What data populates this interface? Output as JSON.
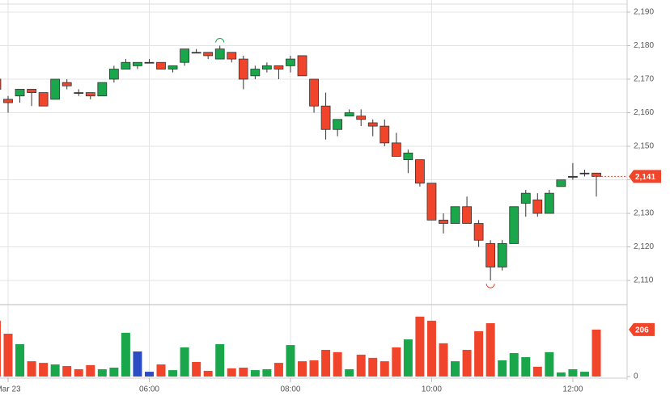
{
  "chart_data": {
    "type": "candlestick",
    "categories": [
      null,
      "Mar 23",
      null,
      null,
      null,
      null,
      null,
      null,
      null,
      null,
      null,
      null,
      null,
      "06:00",
      null,
      null,
      null,
      null,
      null,
      null,
      null,
      null,
      null,
      null,
      null,
      "08:00",
      null,
      null,
      null,
      null,
      null,
      null,
      null,
      null,
      null,
      null,
      null,
      "10:00",
      null,
      null,
      null,
      null,
      null,
      null,
      null,
      null,
      null,
      null,
      null,
      "12:00",
      null,
      null
    ],
    "open": [
      2170,
      2164,
      2165,
      2167,
      2166,
      2164,
      2169,
      2166,
      2166,
      2165,
      2170,
      2173,
      2174,
      2175,
      2175,
      2173,
      2175,
      2178,
      2178,
      2176,
      2178,
      2176,
      2171,
      2173,
      2174,
      2174,
      2177,
      2170,
      2162,
      2155,
      2159,
      2159,
      2157,
      2156,
      2151,
      2146,
      2146,
      2139,
      2128,
      2127,
      2132,
      2127,
      2121,
      2114,
      2121,
      2133,
      2134,
      2130,
      2138,
      2141,
      2142,
      2142
    ],
    "high": [
      2171,
      2165,
      2167,
      2167,
      2166,
      2170,
      2170,
      2167,
      2166,
      2169,
      2174,
      2176,
      2175,
      2176,
      2175,
      2174,
      2179,
      2179,
      2178,
      2180,
      2178,
      2177,
      2174,
      2175,
      2174,
      2177,
      2177,
      2170,
      2166,
      2158,
      2161,
      2161,
      2158,
      2158,
      2154,
      2149,
      2146,
      2139,
      2130,
      2132,
      2135,
      2128,
      2122,
      2122,
      2132,
      2137,
      2136,
      2137,
      2140,
      2145,
      2143,
      2142
    ],
    "low": [
      2166,
      2160,
      2163,
      2162,
      2162,
      2164,
      2167,
      2165,
      2164,
      2165,
      2169,
      2173,
      2173,
      2175,
      2173,
      2172,
      2174,
      2178,
      2176,
      2176,
      2175,
      2167,
      2170,
      2172,
      2170,
      2172,
      2171,
      2160,
      2152,
      2153,
      2159,
      2156,
      2153,
      2150,
      2147,
      2142,
      2138,
      2128,
      2124,
      2127,
      2127,
      2120,
      2110,
      2113,
      2121,
      2129,
      2129,
      2130,
      2138,
      2140,
      2141,
      2135
    ],
    "close": [
      2167,
      2163,
      2167,
      2166,
      2162,
      2170,
      2168,
      2166,
      2165,
      2169,
      2173,
      2175,
      2175,
      2175,
      2173,
      2174,
      2179,
      2178,
      2177,
      2179,
      2176,
      2170,
      2173,
      2174,
      2173,
      2176,
      2171,
      2162,
      2155,
      2158,
      2160,
      2158,
      2156,
      2151,
      2147,
      2148,
      2139,
      2128,
      2127,
      2132,
      2127,
      2122,
      2114,
      2121,
      2132,
      2136,
      2130,
      2136,
      2140,
      2141,
      2142,
      2141
    ],
    "up_color": "#1aa64a",
    "down_color": "#f0452b",
    "flat_color": "#333333",
    "ylim": [
      2102.8,
      2193.6
    ],
    "yticks": [
      {
        "value": 2110,
        "label": "2,110"
      },
      {
        "value": 2120,
        "label": "2,120"
      },
      {
        "value": 2130,
        "label": "2,130"
      },
      {
        "value": 2140,
        "label": "2,140"
      },
      {
        "value": 2150,
        "label": "2,150"
      },
      {
        "value": 2160,
        "label": "2,160"
      },
      {
        "value": 2170,
        "label": "2,170"
      },
      {
        "value": 2180,
        "label": "2,180"
      },
      {
        "value": 2190,
        "label": "2,190"
      }
    ],
    "last_price": {
      "value": 2141,
      "label": "2,141"
    },
    "grid": true,
    "volume": {
      "values": [
        245,
        188,
        142,
        67,
        60,
        53,
        46,
        32,
        50,
        32,
        39,
        192,
        110,
        21,
        53,
        28,
        128,
        64,
        25,
        142,
        36,
        39,
        28,
        32,
        60,
        138,
        67,
        71,
        117,
        107,
        32,
        96,
        82,
        67,
        128,
        163,
        263,
        245,
        146,
        67,
        117,
        199,
        234,
        71,
        103,
        85,
        43,
        107,
        18,
        32,
        21,
        206
      ],
      "colors": [
        "#f0452b",
        "#f0452b",
        "#1aa64a",
        "#f0452b",
        "#f0452b",
        "#1aa64a",
        "#f0452b",
        "#f0452b",
        "#f0452b",
        "#1aa64a",
        "#1aa64a",
        "#1aa64a",
        "#2a4cc5",
        "#2a4cc5",
        "#f0452b",
        "#1aa64a",
        "#1aa64a",
        "#f0452b",
        "#f0452b",
        "#1aa64a",
        "#f0452b",
        "#f0452b",
        "#1aa64a",
        "#1aa64a",
        "#f0452b",
        "#1aa64a",
        "#f0452b",
        "#f0452b",
        "#f0452b",
        "#f0452b",
        "#1aa64a",
        "#f0452b",
        "#f0452b",
        "#f0452b",
        "#f0452b",
        "#1aa64a",
        "#f0452b",
        "#f0452b",
        "#f0452b",
        "#1aa64a",
        "#f0452b",
        "#f0452b",
        "#f0452b",
        "#1aa64a",
        "#1aa64a",
        "#1aa64a",
        "#f0452b",
        "#1aa64a",
        "#1aa64a",
        "#1aa64a",
        "#1aa64a",
        "#f0452b"
      ],
      "ylim": [
        0,
        305
      ],
      "yticks": [
        0
      ]
    }
  }
}
